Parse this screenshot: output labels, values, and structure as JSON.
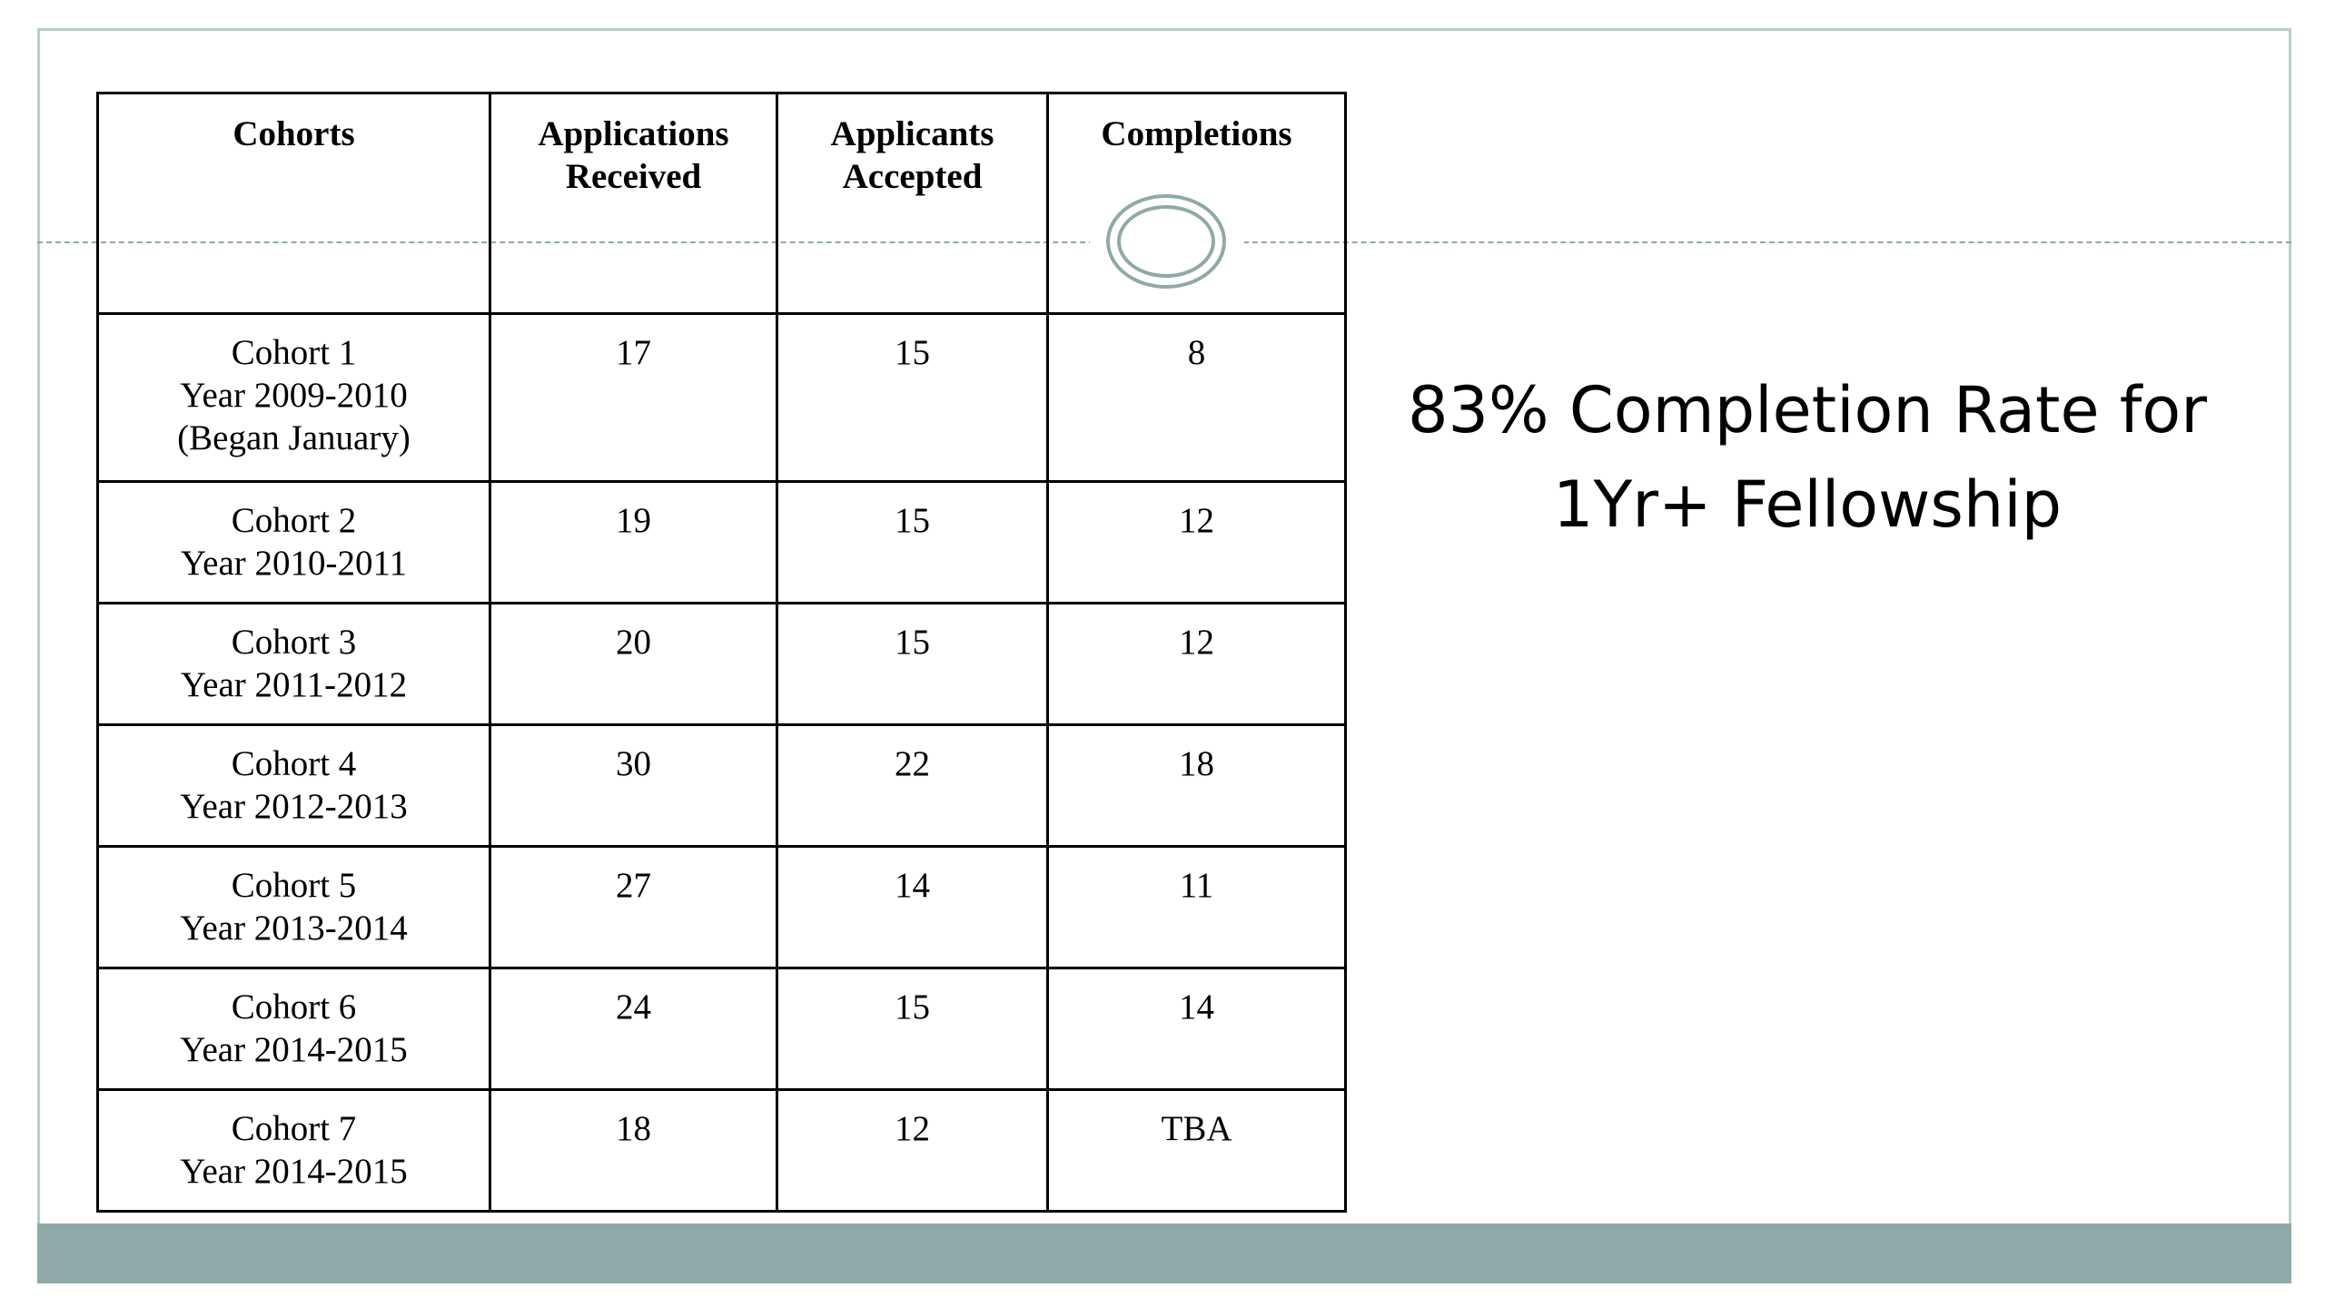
{
  "table": {
    "headers": [
      [
        "Cohorts"
      ],
      [
        "Applications",
        "Received"
      ],
      [
        "Applicants",
        "Accepted"
      ],
      [
        "Completions"
      ]
    ],
    "rows": [
      {
        "cohort": [
          "Cohort 1",
          "Year 2009-2010",
          "(Began January)"
        ],
        "received": "17",
        "accepted": "15",
        "completions": "8"
      },
      {
        "cohort": [
          "Cohort 2",
          "Year 2010-2011"
        ],
        "received": "19",
        "accepted": "15",
        "completions": "12"
      },
      {
        "cohort": [
          "Cohort 3",
          "Year 2011-2012"
        ],
        "received": "20",
        "accepted": "15",
        "completions": "12"
      },
      {
        "cohort": [
          "Cohort 4",
          "Year 2012-2013"
        ],
        "received": "30",
        "accepted": "22",
        "completions": "18"
      },
      {
        "cohort": [
          "Cohort 5",
          "Year 2013-2014"
        ],
        "received": "27",
        "accepted": "14",
        "completions": "11"
      },
      {
        "cohort": [
          "Cohort 6",
          "Year 2014-2015"
        ],
        "received": "24",
        "accepted": "15",
        "completions": "14"
      },
      {
        "cohort": [
          "Cohort 7",
          "Year 2014-2015"
        ],
        "received": "18",
        "accepted": "12",
        "completions": "TBA"
      }
    ]
  },
  "headline": {
    "line1": "83% Completion Rate for",
    "line2": "1Yr+ Fellowship"
  },
  "colors": {
    "accent": "#8fa9a8",
    "frame": "#b9cccb",
    "text": "#000000"
  }
}
